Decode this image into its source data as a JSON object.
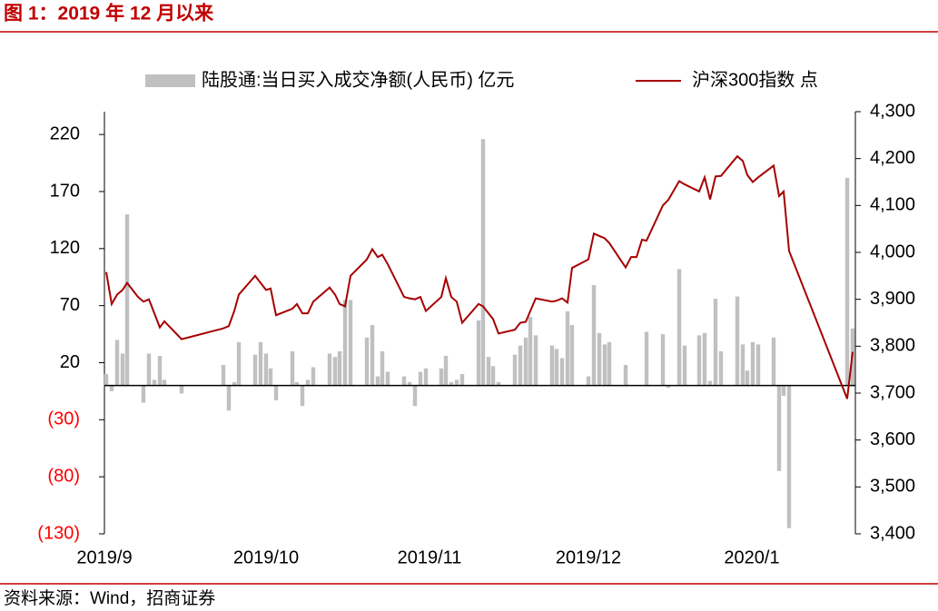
{
  "chart_data": {
    "type": "bar-line",
    "title": "图 1：2019 年 12 月以来",
    "source": "资料来源：Wind，招商证券",
    "xlim": [
      0,
      827
    ],
    "xticks": [
      {
        "value": 0,
        "label": "2019/9"
      },
      {
        "value": 178,
        "label": "2019/10"
      },
      {
        "value": 358,
        "label": "2019/11"
      },
      {
        "value": 533,
        "label": "2019/12"
      },
      {
        "value": 713,
        "label": "2020/1"
      }
    ],
    "ylim": [
      -130,
      240
    ],
    "yticks": [
      {
        "value": -130,
        "label": "(130)"
      },
      {
        "value": -80,
        "label": "(80)"
      },
      {
        "value": -30,
        "label": "(30)"
      },
      20,
      70,
      120,
      170,
      220
    ],
    "negative_tick_color": "#ff0000",
    "y2lim": [
      3400,
      4300
    ],
    "y2ticks": [
      {
        "value": 3400,
        "label": "3,400"
      },
      {
        "value": 3500,
        "label": "3,500"
      },
      {
        "value": 3600,
        "label": "3,600"
      },
      {
        "value": 3700,
        "label": "3,700"
      },
      {
        "value": 3800,
        "label": "3,800"
      },
      {
        "value": 3900,
        "label": "3,900"
      },
      {
        "value": 4000,
        "label": "4,000"
      },
      {
        "value": 4100,
        "label": "4,100"
      },
      {
        "value": 4200,
        "label": "4,200"
      },
      {
        "value": 4300,
        "label": "4,300"
      }
    ],
    "x": [
      2,
      8,
      14,
      20,
      25,
      31,
      37,
      43,
      49,
      55,
      61,
      66,
      85,
      131,
      137,
      143,
      148,
      166,
      172,
      178,
      183,
      189,
      207,
      212,
      218,
      224,
      230,
      248,
      254,
      259,
      265,
      271,
      289,
      295,
      301,
      306,
      312,
      330,
      336,
      342,
      348,
      354,
      371,
      376,
      382,
      388,
      394,
      412,
      417,
      423,
      428,
      434,
      452,
      458,
      464,
      469,
      475,
      493,
      498,
      504,
      510,
      515,
      533,
      539,
      545,
      551,
      556,
      574,
      580,
      586,
      592,
      597,
      615,
      621,
      633,
      639,
      655,
      661,
      667,
      673,
      679,
      697,
      703,
      708,
      714,
      720,
      737,
      743,
      748,
      754,
      818,
      824
    ],
    "series": [
      {
        "name": "陆股通:当日买入成交净额(人民币) 亿元",
        "type": "bar",
        "color": "#c0c0c0",
        "values": [
          10,
          -5,
          40,
          28,
          150,
          null,
          null,
          -15,
          28,
          5,
          26,
          5,
          -7,
          18,
          -22,
          3,
          38,
          27,
          38,
          28,
          15,
          -13,
          30,
          3,
          -18,
          5,
          16,
          28,
          25,
          30,
          75,
          75,
          42,
          53,
          8,
          30,
          12,
          8,
          3,
          -18,
          12,
          15,
          15,
          26,
          3,
          5,
          10,
          57,
          216,
          25,
          17,
          3,
          27,
          35,
          42,
          60,
          44,
          35,
          32,
          24,
          65,
          53,
          8,
          88,
          46,
          36,
          38,
          18,
          0,
          null,
          null,
          47,
          45,
          -2,
          102,
          35,
          44,
          46,
          4,
          76,
          30,
          78,
          36,
          13,
          38,
          36,
          42,
          -75,
          -9,
          -125,
          182,
          50
        ]
      },
      {
        "name": "沪深300指数 点",
        "type": "line",
        "axis": "y2",
        "color": "#a50000",
        "values": [
          3958,
          3890,
          3910,
          3920,
          3935,
          3920,
          3905,
          3895,
          3900,
          3870,
          3840,
          3853,
          3815,
          3838,
          3843,
          3875,
          3910,
          3950,
          3935,
          3920,
          3923,
          3866,
          3880,
          3890,
          3870,
          3870,
          3895,
          3925,
          3910,
          3890,
          3885,
          3950,
          3985,
          4007,
          3990,
          3995,
          3975,
          3905,
          3902,
          3900,
          3905,
          3875,
          3905,
          3945,
          3905,
          3895,
          3850,
          3890,
          3885,
          3870,
          3858,
          3827,
          3835,
          3850,
          3852,
          3875,
          3902,
          3895,
          3897,
          3902,
          3893,
          3967,
          3985,
          4040,
          4035,
          4030,
          4020,
          3968,
          3990,
          3990,
          4027,
          4025,
          4100,
          4112,
          4152,
          4145,
          4130,
          4160,
          4113,
          4162,
          4163,
          4205,
          4195,
          4165,
          4150,
          4160,
          4185,
          4120,
          4130,
          4003,
          3688,
          3788
        ]
      }
    ]
  }
}
